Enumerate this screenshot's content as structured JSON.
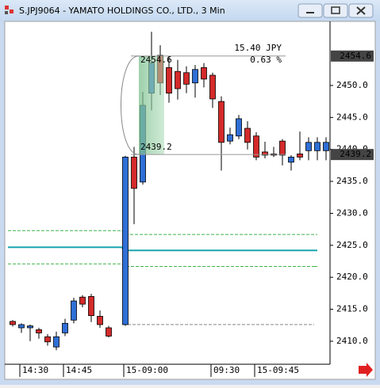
{
  "chart_data": {
    "type": "candlestick",
    "title": "S.JPJ9064 - YAMATO HOLDINGS CO., LTD., 3 Min",
    "categories": [
      null,
      "14:30",
      null,
      null,
      null,
      null,
      "14:45",
      null,
      null,
      null,
      null,
      null,
      "15-09:00",
      null,
      null,
      null,
      null,
      null,
      null,
      null,
      null,
      null,
      "09:30",
      null,
      null,
      null,
      null,
      "15-09:45",
      null,
      null,
      null,
      null,
      null,
      null,
      null,
      null
    ],
    "open": [
      2413.1,
      2412.1,
      2412.1,
      2411.8,
      2410.7,
      2409.1,
      2411.3,
      2413.3,
      2416.9,
      2417.0,
      2413.9,
      2412.1,
      2412.6,
      2438.8,
      2434.9,
      2448.8,
      2454.7,
      2452.8,
      2452.2,
      2452.0,
      2450.4,
      2452.8,
      2451.6,
      2447.5,
      2441.3,
      2442.1,
      2443.3,
      2442.1,
      2439.6,
      2439.3,
      2441.3,
      2438.0,
      2439.3,
      2439.8,
      2439.8,
      2439.8
    ],
    "high": [
      2413.3,
      2412.8,
      2412.6,
      2412.1,
      2411.1,
      2411.5,
      2413.5,
      2416.8,
      2417.2,
      2417.4,
      2414.8,
      2412.4,
      2439.0,
      2440.4,
      2449.0,
      2458.4,
      2456.3,
      2454.6,
      2454.0,
      2453.0,
      2453.2,
      2453.5,
      2452.0,
      2448.3,
      2443.4,
      2445.4,
      2444.4,
      2442.7,
      2441.2,
      2440.4,
      2441.6,
      2439.1,
      2442.8,
      2441.9,
      2441.9,
      2441.9
    ],
    "low": [
      2412.3,
      2411.3,
      2410.0,
      2410.4,
      2409.3,
      2408.6,
      2410.8,
      2412.8,
      2415.3,
      2413.0,
      2412.1,
      2410.6,
      2412.4,
      2428.3,
      2434.5,
      2446.1,
      2448.5,
      2447.3,
      2447.8,
      2448.8,
      2448.1,
      2449.7,
      2446.5,
      2436.7,
      2440.8,
      2441.6,
      2440.0,
      2438.3,
      2438.6,
      2438.8,
      2437.5,
      2436.7,
      2438.3,
      2438.3,
      2438.3,
      2438.3
    ],
    "close": [
      2412.6,
      2412.6,
      2412.4,
      2411.3,
      2409.9,
      2410.7,
      2412.8,
      2416.3,
      2415.8,
      2414.0,
      2412.6,
      2410.8,
      2438.8,
      2433.9,
      2446.9,
      2453.5,
      2450.4,
      2448.8,
      2449.5,
      2450.2,
      2452.5,
      2451.0,
      2447.9,
      2441.1,
      2442.3,
      2444.8,
      2441.1,
      2438.8,
      2439.1,
      2439.1,
      2439.1,
      2438.8,
      2438.8,
      2441.1,
      2441.1,
      2441.1
    ],
    "up_color": "#2f6fd6",
    "down_color": "#d42a2a",
    "ylim": [
      2406.4,
      2459.9
    ],
    "yticks": [
      {
        "value": 2410,
        "label": "2410.0"
      },
      {
        "value": 2415,
        "label": "2415.0"
      },
      {
        "value": 2420,
        "label": "2420.0"
      },
      {
        "value": 2425,
        "label": "2425.0"
      },
      {
        "value": 2430,
        "label": "2430.0"
      },
      {
        "value": 2435,
        "label": "2435.0"
      },
      {
        "value": 2440,
        "label": "2440.0"
      },
      {
        "value": 2445,
        "label": "2445.0"
      },
      {
        "value": 2450,
        "label": "2450.0"
      }
    ],
    "lines": [
      {
        "color": "#3cb44b",
        "dashed": true,
        "values": [
          2427.3,
          2427.3,
          2427.3,
          2427.3,
          2427.3,
          2427.3,
          2427.3,
          2427.3,
          2427.3,
          2427.3,
          2427.3,
          2427.3,
          2426.7,
          2426.7,
          2426.7,
          2426.7,
          2426.7,
          2426.7,
          2426.7,
          2426.7,
          2426.7,
          2426.7,
          2426.7,
          2426.7,
          2426.7,
          2426.7,
          2426.7,
          2426.7,
          2426.7,
          2426.7,
          2426.7,
          2426.7,
          2426.7,
          2426.7,
          2426.7,
          2426.7
        ]
      },
      {
        "color": "#1aa6b0",
        "dashed": false,
        "values": [
          2424.7,
          2424.7,
          2424.7,
          2424.7,
          2424.7,
          2424.7,
          2424.7,
          2424.7,
          2424.7,
          2424.7,
          2424.7,
          2424.7,
          2424.2,
          2424.2,
          2424.2,
          2424.2,
          2424.2,
          2424.2,
          2424.2,
          2424.2,
          2424.2,
          2424.2,
          2424.2,
          2424.2,
          2424.2,
          2424.2,
          2424.2,
          2424.2,
          2424.2,
          2424.2,
          2424.2,
          2424.2,
          2424.2,
          2424.2,
          2424.2,
          2424.2
        ]
      },
      {
        "color": "#3cb44b",
        "dashed": true,
        "values": [
          2422.1,
          2422.1,
          2422.1,
          2422.1,
          2422.1,
          2422.1,
          2422.1,
          2422.1,
          2422.1,
          2422.1,
          2422.1,
          2422.1,
          2421.7,
          2421.7,
          2421.7,
          2421.7,
          2421.7,
          2421.7,
          2421.7,
          2421.7,
          2421.7,
          2421.7,
          2421.7,
          2421.7,
          2421.7,
          2421.7,
          2421.7,
          2421.7,
          2421.7,
          2421.7,
          2421.7,
          2421.7,
          2421.7,
          2421.7,
          2421.7,
          2421.7
        ]
      }
    ],
    "baseline": {
      "value": 2412.6,
      "color": "#888888"
    },
    "measure": {
      "high": 2454.6,
      "low": 2439.2,
      "diff_label": "15.40 JPY",
      "pct_label": "0.63 %"
    }
  }
}
